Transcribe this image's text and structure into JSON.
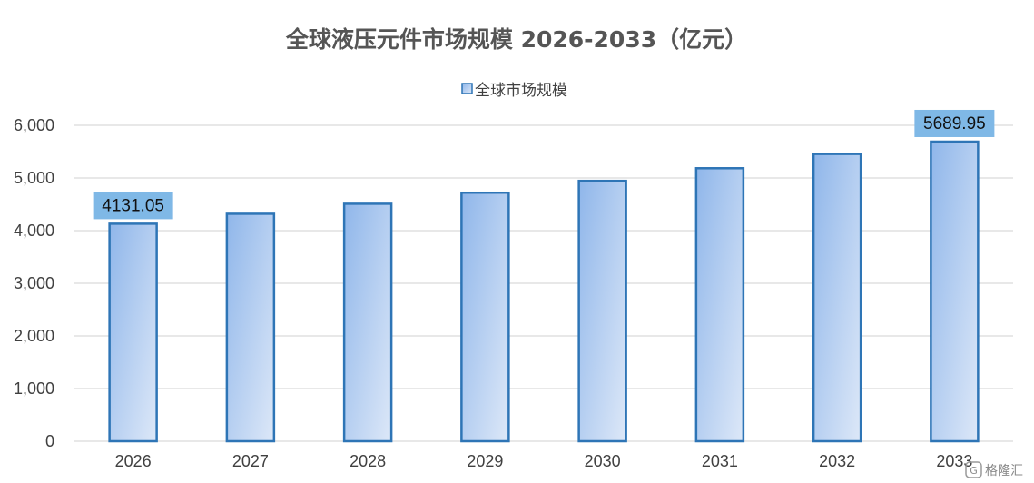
{
  "chart_data": {
    "type": "bar",
    "title": "全球液压元件市场规模 2026-2033（亿元）",
    "categories": [
      "2026",
      "2027",
      "2028",
      "2029",
      "2030",
      "2031",
      "2032",
      "2033"
    ],
    "series": [
      {
        "name": "全球市场规模",
        "values": [
          4131.05,
          4320,
          4510,
          4720,
          4945,
          5185,
          5455,
          5689.95
        ]
      }
    ],
    "data_labels": [
      {
        "category": "2026",
        "text": "4131.05"
      },
      {
        "category": "2033",
        "text": "5689.95"
      }
    ],
    "ylim": [
      0,
      6000
    ],
    "yticks": [
      "0",
      "1,000",
      "2,000",
      "3,000",
      "4,000",
      "5,000",
      "6,000"
    ],
    "grid": true,
    "legend_position": "top",
    "colors": {
      "bar_top": "#8fb6ea",
      "bar_bottom": "#dde8f8",
      "bar_border": "#2e75b6",
      "label_bg": "#7fb8e6",
      "grid": "#d9d9d9",
      "title": "#555555"
    }
  },
  "watermark": {
    "text": "格隆汇"
  }
}
